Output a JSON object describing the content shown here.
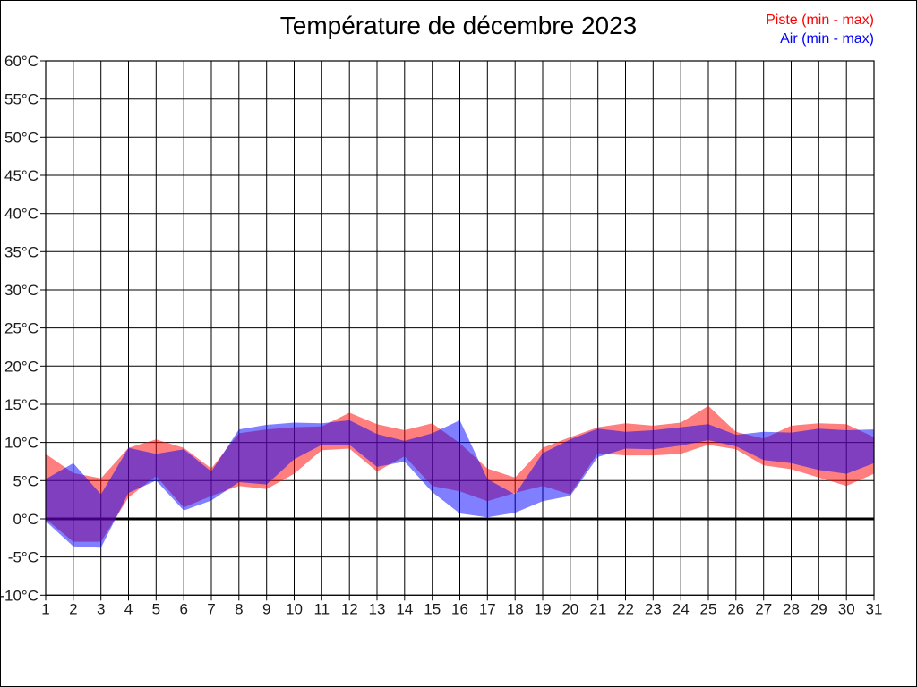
{
  "title": "Température de décembre 2023",
  "legend": {
    "piste_label": "Piste (min - max)",
    "air_label": "Air (min - max)",
    "piste_color": "#ff0000",
    "air_color": "#0000ff"
  },
  "chart_data": {
    "type": "area",
    "subtype": "min-max range bands",
    "title": "Température de décembre 2023",
    "xlabel": "",
    "ylabel": "",
    "ylim": [
      -10,
      60
    ],
    "grid": true,
    "zero_line": true,
    "legend_position": "top-right",
    "x": [
      1,
      2,
      3,
      4,
      5,
      6,
      7,
      8,
      9,
      10,
      11,
      12,
      13,
      14,
      15,
      16,
      17,
      18,
      19,
      20,
      21,
      22,
      23,
      24,
      25,
      26,
      27,
      28,
      29,
      30,
      31
    ],
    "x_tick_labels": [
      "1",
      "2",
      "3",
      "4",
      "5",
      "6",
      "7",
      "8",
      "9",
      "10",
      "11",
      "12",
      "13",
      "14",
      "15",
      "16",
      "17",
      "18",
      "19",
      "20",
      "21",
      "22",
      "23",
      "24",
      "25",
      "26",
      "27",
      "28",
      "29",
      "30",
      "31"
    ],
    "y_tick_values": [
      60,
      55,
      50,
      45,
      40,
      35,
      30,
      25,
      20,
      15,
      10,
      5,
      0,
      -5,
      -10
    ],
    "y_tick_labels": [
      "60°C",
      "55°C",
      "50°C",
      "45°C",
      "40°C",
      "35°C",
      "30°C",
      "25°C",
      "20°C",
      "15°C",
      "10°C",
      "5°C",
      "0°C",
      "-5°C",
      "-10°C"
    ],
    "series": [
      {
        "name": "Piste (min - max)",
        "color": "#ff0000",
        "opacity": 0.5,
        "min": [
          0.0,
          -3.0,
          -3.0,
          2.8,
          5.6,
          1.5,
          3.0,
          4.3,
          3.9,
          5.9,
          9.0,
          9.2,
          6.2,
          8.2,
          4.3,
          3.6,
          2.3,
          3.4,
          4.3,
          3.2,
          8.6,
          8.3,
          8.3,
          8.5,
          9.7,
          9.1,
          7.0,
          6.5,
          5.4,
          4.3,
          5.9
        ],
        "max": [
          8.5,
          6.0,
          5.3,
          9.3,
          10.4,
          9.3,
          6.6,
          11.2,
          11.7,
          12.0,
          12.1,
          13.9,
          12.4,
          11.6,
          12.5,
          9.9,
          6.6,
          5.4,
          9.3,
          10.7,
          12.0,
          12.5,
          12.2,
          12.6,
          14.8,
          11.4,
          10.5,
          12.2,
          12.5,
          12.4,
          10.7
        ]
      },
      {
        "name": "Air (min - max)",
        "color": "#0000ff",
        "opacity": 0.5,
        "min": [
          -0.3,
          -3.6,
          -3.8,
          3.4,
          5.0,
          1.1,
          2.4,
          4.8,
          4.5,
          7.8,
          9.7,
          9.7,
          6.8,
          7.5,
          3.5,
          0.7,
          0.2,
          0.8,
          2.3,
          3.0,
          8.1,
          9.2,
          9.1,
          9.6,
          10.3,
          9.5,
          7.7,
          7.3,
          6.4,
          5.9,
          7.3
        ],
        "max": [
          5.2,
          7.3,
          3.2,
          9.3,
          8.5,
          9.1,
          6.2,
          11.7,
          12.3,
          12.6,
          12.5,
          12.9,
          11.1,
          10.2,
          11.2,
          12.9,
          5.2,
          3.2,
          8.6,
          10.4,
          11.8,
          11.4,
          11.6,
          12.0,
          12.4,
          11.0,
          11.4,
          11.3,
          11.8,
          11.6,
          11.7
        ]
      }
    ]
  }
}
